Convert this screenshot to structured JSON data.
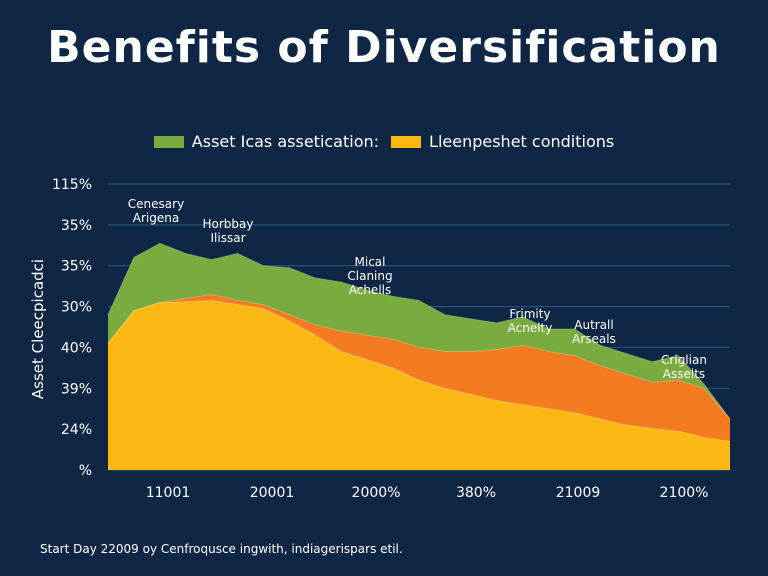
{
  "chart_data": {
    "type": "area",
    "title": "Benefits of Diversification",
    "ylabel": "Asset Cleecpicadci",
    "legend": {
      "placement": "top-center",
      "entries": [
        {
          "label": "Asset Icas assetication:",
          "color": "#7aab3e"
        },
        {
          "label": "Lleenpeshet conditions",
          "color": "#fdb913"
        }
      ]
    },
    "y_tick_labels": [
      "115%",
      "35%",
      "35%",
      "30%",
      "40%",
      "39%",
      "24%",
      "%"
    ],
    "x_tick_labels": [
      "11001",
      "20001",
      "2000%",
      "380%",
      "21009",
      "2100%"
    ],
    "x": [
      0,
      1,
      2,
      3,
      4,
      5,
      6,
      7,
      8,
      9,
      10,
      11,
      12,
      13,
      14,
      15,
      16,
      17,
      18,
      19,
      20,
      21,
      22,
      23,
      24
    ],
    "ylim": [
      0,
      7
    ],
    "grid": true,
    "series": [
      {
        "color": "#fdb913",
        "values": [
          3.1,
          3.9,
          4.1,
          4.12,
          4.15,
          4.05,
          3.95,
          3.65,
          3.3,
          2.9,
          2.7,
          2.5,
          2.2,
          2.0,
          1.85,
          1.7,
          1.6,
          1.5,
          1.4,
          1.25,
          1.1,
          1.02,
          0.95,
          0.8,
          0.7
        ]
      },
      {
        "color": "#f47b20",
        "values": [
          3.1,
          3.9,
          4.1,
          4.2,
          4.3,
          4.15,
          4.05,
          3.8,
          3.55,
          3.4,
          3.3,
          3.2,
          3.0,
          2.9,
          2.9,
          2.95,
          3.05,
          2.9,
          2.8,
          2.55,
          2.35,
          2.15,
          2.2,
          2.0,
          1.25
        ]
      },
      {
        "color": "#7aab3e",
        "values": [
          3.8,
          5.2,
          5.55,
          5.3,
          5.15,
          5.3,
          5.0,
          4.95,
          4.7,
          4.6,
          4.4,
          4.25,
          4.15,
          3.8,
          3.7,
          3.6,
          3.75,
          3.45,
          3.45,
          3.05,
          2.85,
          2.65,
          2.8,
          2.1,
          1.25
        ]
      }
    ],
    "annotations": [
      {
        "lines": [
          "Cenesary",
          "Arigena"
        ]
      },
      {
        "lines": [
          "Horbbay",
          "Ilissar"
        ]
      },
      {
        "lines": [
          "Mical",
          "Claning",
          "Achells"
        ]
      },
      {
        "lines": [
          "Frimity",
          "Acnelty"
        ]
      },
      {
        "lines": [
          "Autrall",
          "Arseals"
        ]
      },
      {
        "lines": [
          "Criglian",
          "Asselts"
        ]
      }
    ]
  },
  "footer": "Start Day 22009 oy Cenfroqusce ingwith, indiagerispars etil."
}
